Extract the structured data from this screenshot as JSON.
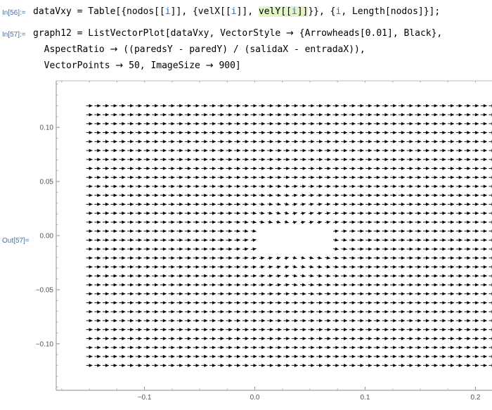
{
  "cells": [
    {
      "label": "In[56]:=",
      "lines": [
        [
          {
            "t": "dataVxy = Table[{nodos[["
          },
          {
            "t": "i",
            "c": "var"
          },
          {
            "t": "]], {velX[["
          },
          {
            "t": "i",
            "c": "var"
          },
          {
            "t": "]], "
          },
          {
            "t": "velY[[",
            "c": "hl"
          },
          {
            "t": "i",
            "c": "hl var"
          },
          {
            "t": "]]",
            "c": "hl"
          },
          {
            "t": "}}, {"
          },
          {
            "t": "i",
            "c": "var"
          },
          {
            "t": ", Length[nodos]}];"
          }
        ]
      ]
    },
    {
      "label": "In[57]:=",
      "lines": [
        [
          {
            "t": "graph12 = ListVectorPlot[dataVxy, VectorStyle "
          },
          {
            "t": "→",
            "c": "arrow"
          },
          {
            "t": " {Arrowheads[0.01], Black},"
          }
        ],
        [
          {
            "t": "  AspectRatio "
          },
          {
            "t": "→",
            "c": "arrow"
          },
          {
            "t": " ((paredsY - paredY) / (salidaX - entradaX)),"
          }
        ],
        [
          {
            "t": "  VectorPoints "
          },
          {
            "t": "→",
            "c": "arrow"
          },
          {
            "t": " 50, ImageSize "
          },
          {
            "t": "→",
            "c": "arrow"
          },
          {
            "t": " 900]"
          }
        ]
      ]
    }
  ],
  "output": {
    "label": "Out[57]=",
    "chart_data": {
      "type": "vector",
      "x_ticks": [
        {
          "value": -0.1,
          "label": "−0.1"
        },
        {
          "value": 0.0,
          "label": "0.0"
        },
        {
          "value": 0.1,
          "label": "0.1"
        },
        {
          "value": 0.2,
          "label": "0.2"
        }
      ],
      "y_ticks": [
        {
          "value": 0.1,
          "label": "0.10"
        },
        {
          "value": 0.05,
          "label": "0.05"
        },
        {
          "value": 0.0,
          "label": "0.00"
        },
        {
          "value": -0.05,
          "label": "−0.05"
        },
        {
          "value": -0.1,
          "label": "−0.10"
        }
      ],
      "xlim": [
        -0.18,
        0.215
      ],
      "ylim": [
        -0.143,
        0.143
      ],
      "field_x_range": [
        -0.15,
        0.215
      ],
      "field_y_range": [
        -0.12,
        0.12
      ],
      "vector_points": 50,
      "arrow_color": "#000000",
      "obstacle": {
        "x_range": [
          0.0,
          0.07
        ],
        "y_range": [
          -0.015,
          0.008
        ]
      }
    }
  }
}
